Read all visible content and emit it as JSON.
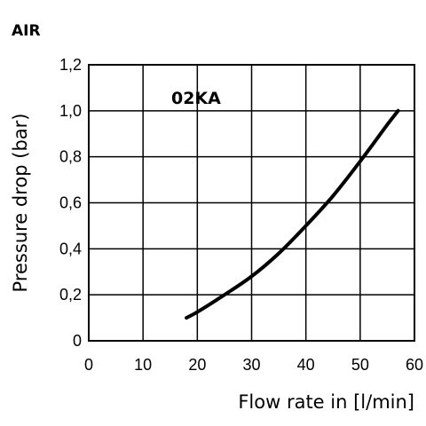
{
  "chart_data": {
    "type": "line",
    "heading": "AIR",
    "xlabel": "Flow rate in [l/min]",
    "ylabel": "Pressure drop (bar)",
    "xlim": [
      0,
      60
    ],
    "ylim": [
      0,
      1.2
    ],
    "x_ticks": [
      "0",
      "10",
      "20",
      "30",
      "40",
      "50",
      "60"
    ],
    "y_ticks": [
      "0",
      "0,2",
      "0,4",
      "0,6",
      "0,8",
      "1,0",
      "1,2"
    ],
    "grid": true,
    "series": [
      {
        "name": "02KA",
        "x": [
          18,
          20,
          25,
          30,
          35,
          40,
          45,
          50,
          55,
          57
        ],
        "y": [
          0.1,
          0.125,
          0.2,
          0.28,
          0.38,
          0.5,
          0.63,
          0.78,
          0.94,
          1.0
        ]
      }
    ]
  }
}
